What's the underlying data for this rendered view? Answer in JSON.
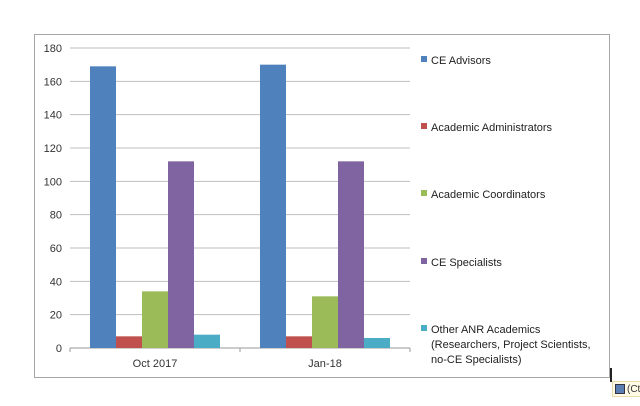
{
  "chart_data": {
    "type": "bar",
    "categories": [
      "Oct 2017",
      "Jan-18"
    ],
    "series": [
      {
        "name": "CE Advisors",
        "color": "#4f81bd",
        "values": [
          169,
          170
        ]
      },
      {
        "name": "Academic Administrators",
        "color": "#c0504d",
        "values": [
          7,
          7
        ]
      },
      {
        "name": "Academic Coordinators",
        "color": "#9bbb59",
        "values": [
          34,
          31
        ]
      },
      {
        "name": "CE Specialists",
        "color": "#8064a2",
        "values": [
          112,
          112
        ]
      },
      {
        "name": "Other ANR Academics (Researchers, Project Scientists, no-CE Specialists)",
        "legend_lines": [
          "Other ANR Academics",
          "(Researchers, Project Scientists,",
          "no-CE Specialists)"
        ],
        "color": "#4bacc6",
        "values": [
          8,
          6
        ]
      }
    ],
    "ylim": [
      0,
      180
    ],
    "yticks": [
      0,
      20,
      40,
      60,
      80,
      100,
      120,
      140,
      160,
      180
    ],
    "grid": true,
    "legend_position": "right"
  },
  "overlay": {
    "paste_options_label": "(Ct"
  }
}
